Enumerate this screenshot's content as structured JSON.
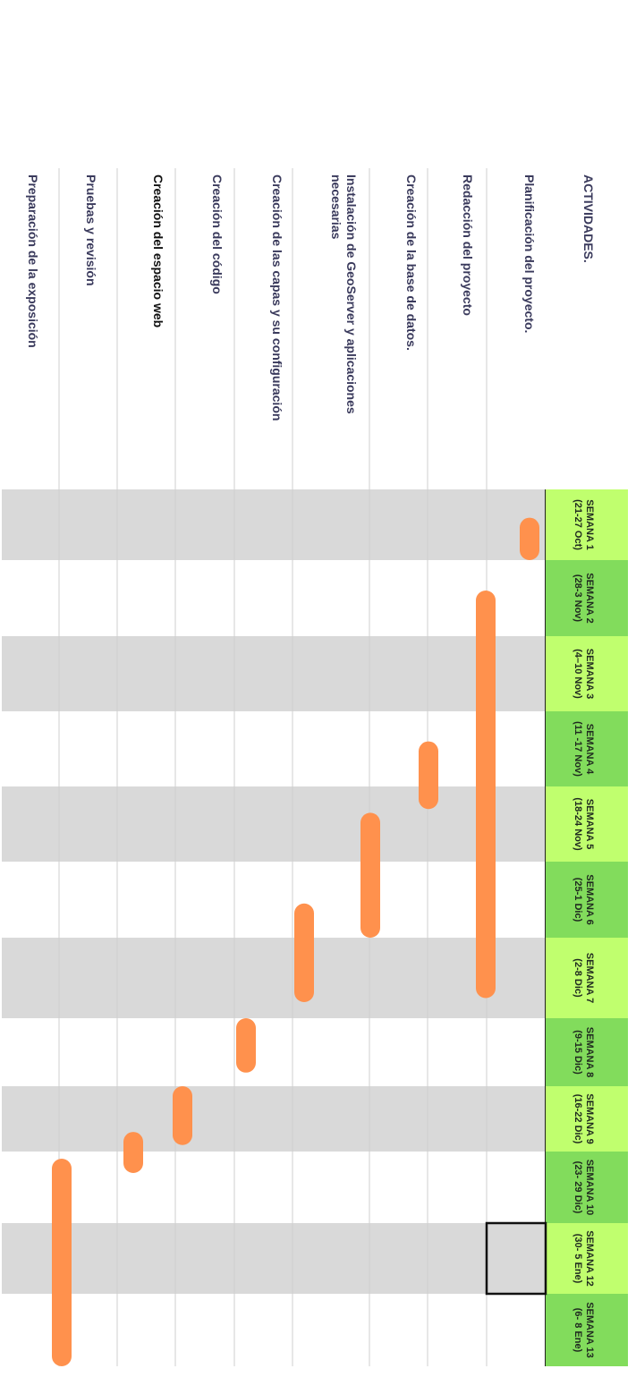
{
  "chart_data": {
    "type": "gantt",
    "header": "ACTIVIDADES.",
    "weeks": [
      {
        "name": "SEMANA 1",
        "range": "(21-27 Oct)"
      },
      {
        "name": "SEMANA 2",
        "range": "(28-3 Nov)"
      },
      {
        "name": "SEMANA  3",
        "range": "(4–10 Nov)"
      },
      {
        "name": "SEMANA 4",
        "range": "(11 -17 Nov)"
      },
      {
        "name": "SEMANA  5",
        "range": "(18-24 Nov)"
      },
      {
        "name": "SEMANA  6",
        "range": "(25-1 Dic)"
      },
      {
        "name": "SEMANA  7",
        "range": "(2-8 Dic)"
      },
      {
        "name": "SEMANA  8",
        "range": "(9-15 Dic)"
      },
      {
        "name": "SEMANA  9",
        "range": "(16-22 Dic)"
      },
      {
        "name": "SEMANA 10",
        "range": "(23- 29 Dic)"
      },
      {
        "name": "SEMANA 12",
        "range": "(30- 5 Ene)"
      },
      {
        "name": "SEMANA 13",
        "range": "(6- 8 Ene)"
      }
    ],
    "activities": [
      {
        "lines": [
          "Planificación del proyecto."
        ],
        "start": 0.4,
        "end": 1.0,
        "dark": false
      },
      {
        "lines": [
          "Redacción del proyecto"
        ],
        "start": 1.4,
        "end": 6.75,
        "dark": false
      },
      {
        "lines": [
          "Creación de la base de datos."
        ],
        "start": 3.4,
        "end": 4.3,
        "dark": false
      },
      {
        "lines": [
          "Instalación de GeoServer y aplicaciones",
          "necesarias"
        ],
        "start": 4.35,
        "end": 6.0,
        "dark": false
      },
      {
        "lines": [
          "Creación de las capas y su configuración"
        ],
        "start": 5.55,
        "end": 6.8,
        "dark": false
      },
      {
        "lines": [
          "Creación del código"
        ],
        "start": 7.0,
        "end": 7.8,
        "dark": false
      },
      {
        "lines": [
          "Creación del espacio web"
        ],
        "start": 8.0,
        "end": 8.9,
        "dark": true
      },
      {
        "lines": [
          "Pruebas y revisión"
        ],
        "start": 8.7,
        "end": 9.3,
        "dark": false
      },
      {
        "lines": [
          "Preparación de la exposición"
        ],
        "start": 9.1,
        "end": 12.0,
        "dark": false
      }
    ],
    "colors": {
      "header_light": "#c0ff6e",
      "header_dark": "#82dc5c",
      "band": "#d9d9d9",
      "bar": "#ff914d",
      "label": "#3a3a5c",
      "label_dark": "#111111"
    }
  }
}
